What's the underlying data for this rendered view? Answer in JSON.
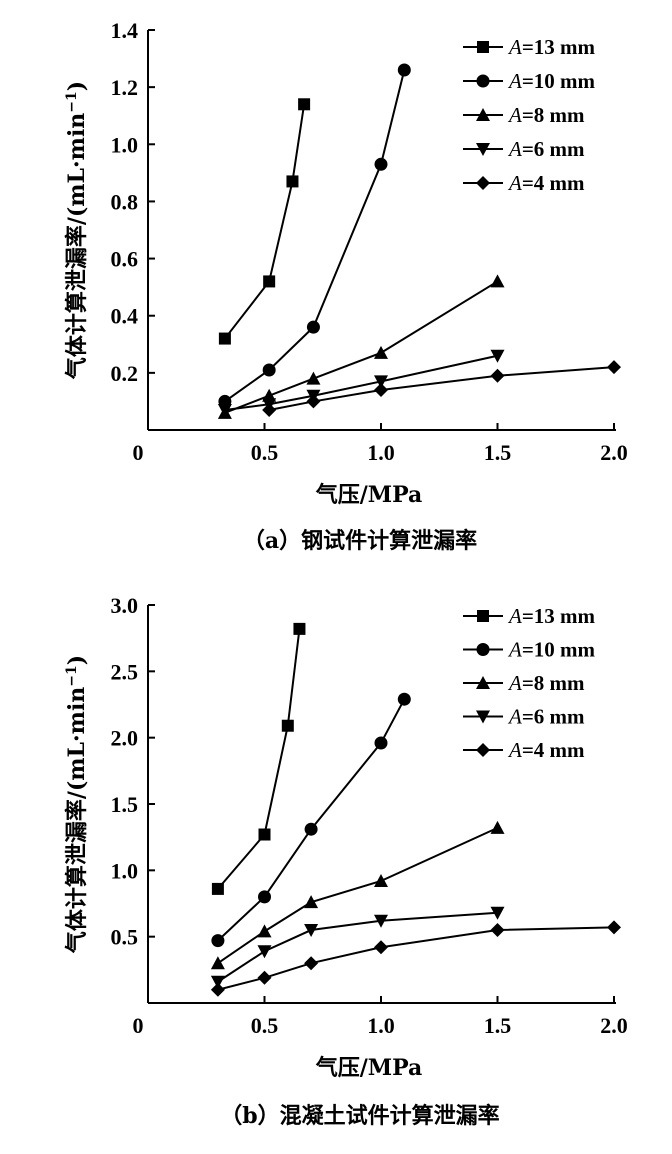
{
  "chart_data": [
    {
      "type": "line",
      "panel": "a",
      "caption": "（a）钢试件计算泄漏率",
      "xlabel": "气压/MPa",
      "ylabel": "气体计算泄漏率/(mL·min",
      "ylabel_sup": "−1",
      "ylabel_end": ")",
      "xlim": [
        0,
        2.0
      ],
      "ylim": [
        0,
        1.4
      ],
      "xticks": [
        0,
        0.5,
        1.0,
        1.5,
        2.0
      ],
      "xtick_labels": [
        "0",
        "0.5",
        "1.0",
        "1.5",
        "2.0"
      ],
      "yticks": [
        0.2,
        0.4,
        0.6,
        0.8,
        1.0,
        1.2,
        1.4
      ],
      "ytick_labels": [
        "0.2",
        "0.4",
        "0.6",
        "0.8",
        "1.0",
        "1.2",
        "1.4"
      ],
      "legend_position": "top-right",
      "series": [
        {
          "name": "A=13 mm",
          "var": "A",
          "rest": "=13 mm",
          "marker": "square",
          "x": [
            0.33,
            0.52,
            0.62,
            0.67
          ],
          "y": [
            0.32,
            0.52,
            0.87,
            1.14
          ]
        },
        {
          "name": "A=10 mm",
          "var": "A",
          "rest": "=10 mm",
          "marker": "circle",
          "x": [
            0.33,
            0.52,
            0.71,
            1.0,
            1.1
          ],
          "y": [
            0.1,
            0.21,
            0.36,
            0.93,
            1.26
          ]
        },
        {
          "name": "A=8 mm",
          "var": "A",
          "rest": "=8 mm",
          "marker": "triangle-up",
          "x": [
            0.33,
            0.52,
            0.71,
            1.0,
            1.5
          ],
          "y": [
            0.06,
            0.12,
            0.18,
            0.27,
            0.52
          ]
        },
        {
          "name": "A=6 mm",
          "var": "A",
          "rest": "=6 mm",
          "marker": "triangle-down",
          "x": [
            0.33,
            0.52,
            0.71,
            1.0,
            1.5
          ],
          "y": [
            0.07,
            0.09,
            0.12,
            0.17,
            0.26
          ]
        },
        {
          "name": "A=4 mm",
          "var": "A",
          "rest": "=4 mm",
          "marker": "diamond",
          "x": [
            0.52,
            0.71,
            1.0,
            1.5,
            2.0
          ],
          "y": [
            0.07,
            0.1,
            0.14,
            0.19,
            0.22
          ]
        }
      ]
    },
    {
      "type": "line",
      "panel": "b",
      "caption": "（b）混凝土试件计算泄漏率",
      "xlabel": "气压/MPa",
      "ylabel": "气体计算泄漏率/(mL·min",
      "ylabel_sup": "−1",
      "ylabel_end": ")",
      "xlim": [
        0,
        2.0
      ],
      "ylim": [
        0,
        3.0
      ],
      "xticks": [
        0,
        0.5,
        1.0,
        1.5,
        2.0
      ],
      "xtick_labels": [
        "0",
        "0.5",
        "1.0",
        "1.5",
        "2.0"
      ],
      "yticks": [
        0.5,
        1.0,
        1.5,
        2.0,
        2.5,
        3.0
      ],
      "ytick_labels": [
        "0.5",
        "1.0",
        "1.5",
        "2.0",
        "2.5",
        "3.0"
      ],
      "legend_position": "top-right",
      "series": [
        {
          "name": "A=13 mm",
          "var": "A",
          "rest": "=13 mm",
          "marker": "square",
          "x": [
            0.3,
            0.5,
            0.6,
            0.65
          ],
          "y": [
            0.86,
            1.27,
            2.09,
            2.82
          ]
        },
        {
          "name": "A=10 mm",
          "var": "A",
          "rest": "=10 mm",
          "marker": "circle",
          "x": [
            0.3,
            0.5,
            0.7,
            1.0,
            1.1
          ],
          "y": [
            0.47,
            0.8,
            1.31,
            1.96,
            2.29
          ]
        },
        {
          "name": "A=8 mm",
          "var": "A",
          "rest": "=8 mm",
          "marker": "triangle-up",
          "x": [
            0.3,
            0.5,
            0.7,
            1.0,
            1.5
          ],
          "y": [
            0.3,
            0.54,
            0.76,
            0.92,
            1.32
          ]
        },
        {
          "name": "A=6 mm",
          "var": "A",
          "rest": "=6 mm",
          "marker": "triangle-down",
          "x": [
            0.3,
            0.5,
            0.7,
            1.0,
            1.5
          ],
          "y": [
            0.16,
            0.39,
            0.55,
            0.62,
            0.68
          ]
        },
        {
          "name": "A=4 mm",
          "var": "A",
          "rest": "=4 mm",
          "marker": "diamond",
          "x": [
            0.3,
            0.5,
            0.7,
            1.0,
            1.5,
            2.0
          ],
          "y": [
            0.1,
            0.19,
            0.3,
            0.42,
            0.55,
            0.57
          ]
        }
      ]
    }
  ]
}
